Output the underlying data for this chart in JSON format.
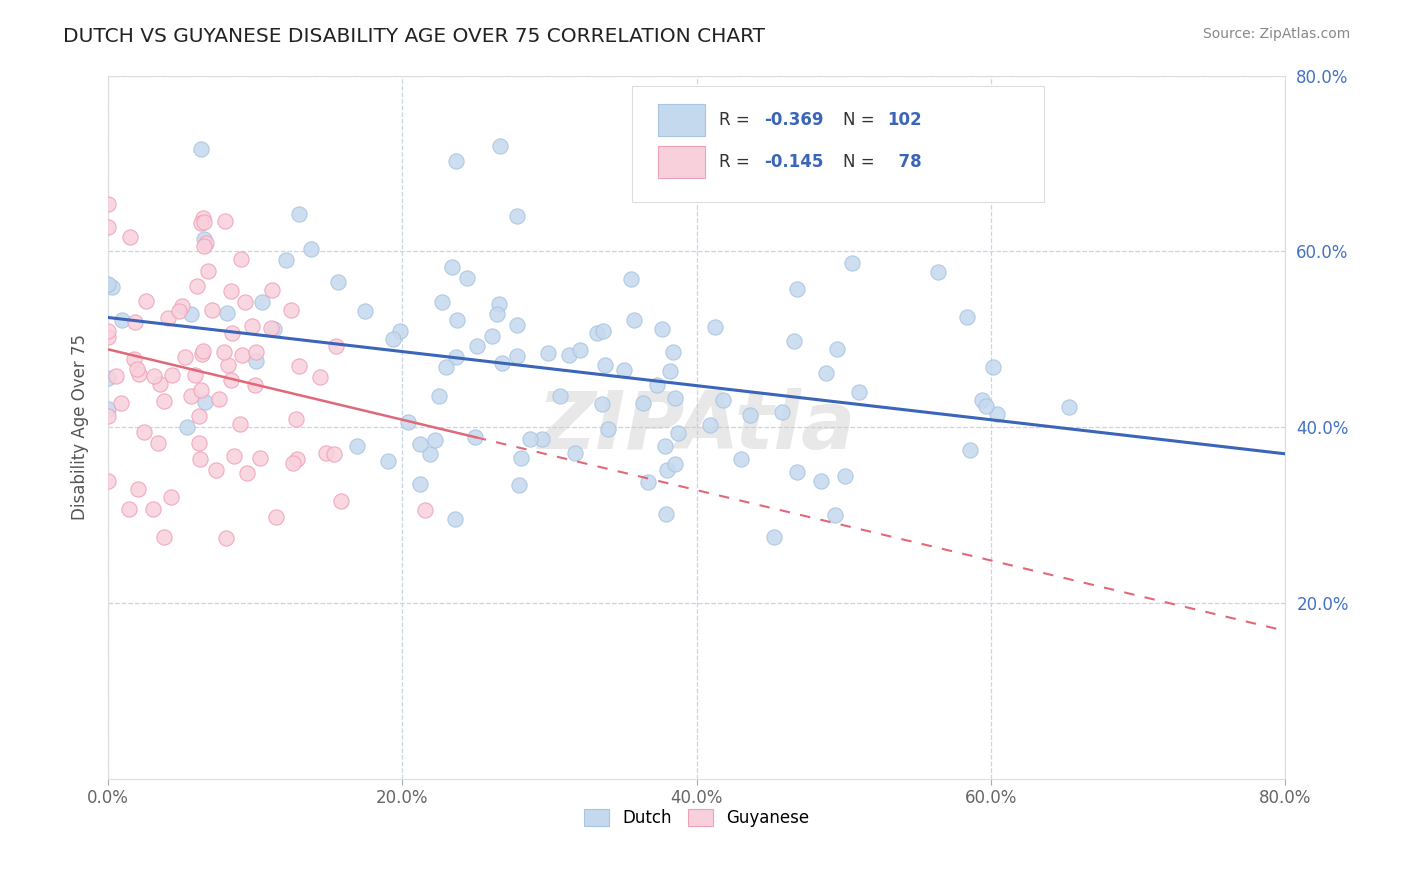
{
  "title": "DUTCH VS GUYANESE DISABILITY AGE OVER 75 CORRELATION CHART",
  "source": "Source: ZipAtlas.com",
  "ylabel": "Disability Age Over 75",
  "xlim": [
    0.0,
    0.8
  ],
  "ylim": [
    0.0,
    0.8
  ],
  "dutch_color": "#a8c4e0",
  "dutch_face": "#c5d9ee",
  "guyanese_color": "#f0a0b8",
  "guyanese_face": "#f8d0dc",
  "dutch_line_color": "#3a65b8",
  "guyanese_line_color": "#e06878",
  "legend_label_dutch": "Dutch",
  "legend_label_guyanese": "Guyanese",
  "R_dutch": -0.369,
  "N_dutch": 102,
  "R_guyanese": -0.145,
  "N_guyanese": 78,
  "watermark": "ZIPAtla",
  "background_color": "#ffffff",
  "grid_color": "#c8d4e8",
  "tick_color": "#4472c4",
  "dutch_seed": 42,
  "guyanese_seed": 77
}
